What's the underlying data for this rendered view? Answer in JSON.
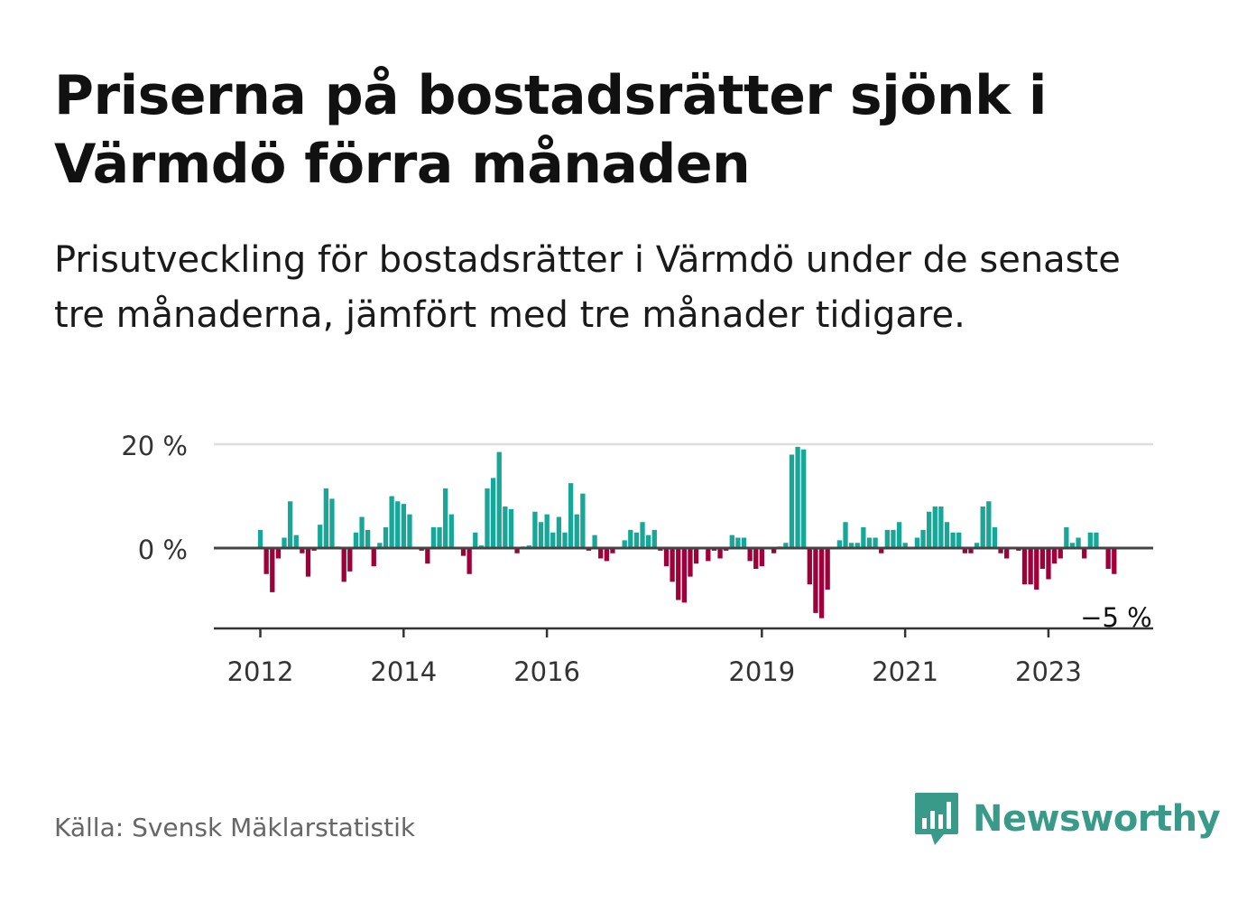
{
  "title": "Priserna på bostadsrätter sjönk i Värmdö förra månaden",
  "subtitle": "Prisutveckling för bostadsrätter i Värmdö under de senaste tre månaderna, jämfört med tre månader tidigare.",
  "source": "Källa: Svensk Mäklarstatistik",
  "brand": "Newsworthy",
  "colors": {
    "positive": "#16a798",
    "negative": "#a0003a",
    "brand": "#3a9a8a"
  },
  "chart_data": {
    "type": "bar",
    "ylim": [
      -15,
      20
    ],
    "y_ticks": [
      {
        "value": 20,
        "label": "20 %"
      },
      {
        "value": 0,
        "label": "0 %"
      }
    ],
    "x_ticks": [
      {
        "value": 2012,
        "label": "2012"
      },
      {
        "value": 2014,
        "label": "2014"
      },
      {
        "value": 2016,
        "label": "2016"
      },
      {
        "value": 2019,
        "label": "2019"
      },
      {
        "value": 2021,
        "label": "2021"
      },
      {
        "value": 2023,
        "label": "2023"
      }
    ],
    "start": {
      "year": 2012,
      "month": 1
    },
    "unit": "%",
    "last_label": "−5 %",
    "values": [
      3.5,
      -5,
      -8.5,
      -2,
      2,
      9,
      2.5,
      -1,
      -5.5,
      -0.5,
      4.5,
      11.5,
      9.5,
      0.3,
      -6.5,
      -4.5,
      3,
      6,
      3.5,
      -3.5,
      1,
      4,
      10,
      9,
      8.5,
      6.5,
      0.2,
      -0.5,
      -3,
      4,
      4,
      11.5,
      6.5,
      0.2,
      -1.5,
      -5,
      3,
      0.5,
      11.5,
      13.5,
      18.5,
      8,
      7.5,
      -1,
      0.3,
      0.5,
      7,
      5,
      6.5,
      3,
      6,
      3,
      12.5,
      6.5,
      10.5,
      -0.5,
      2.5,
      -2,
      -2.5,
      -1,
      0.2,
      1.5,
      3.5,
      3,
      5,
      2.5,
      3.5,
      -0.5,
      -3.5,
      -6.5,
      -10,
      -10.5,
      -5.5,
      -3,
      -0.2,
      -2.5,
      -0.5,
      -2,
      -0.5,
      2.5,
      2,
      2,
      -2.5,
      -4,
      -3.5,
      0.2,
      -1,
      0.3,
      1,
      18,
      19.5,
      19,
      -7,
      -12.5,
      -13.5,
      -8,
      0.2,
      1.5,
      5,
      1,
      1,
      4,
      2,
      2,
      -1,
      3.5,
      3.5,
      5,
      1,
      -0.2,
      2,
      3.5,
      7,
      8,
      8,
      5,
      3,
      3,
      -1,
      -1,
      1,
      8,
      9,
      4,
      -1,
      -2,
      -0.2,
      -0.5,
      -7,
      -7,
      -8,
      -4,
      -6,
      -3,
      -2,
      4,
      1,
      2,
      -2,
      3,
      3,
      -0.2,
      -4,
      -5
    ]
  }
}
